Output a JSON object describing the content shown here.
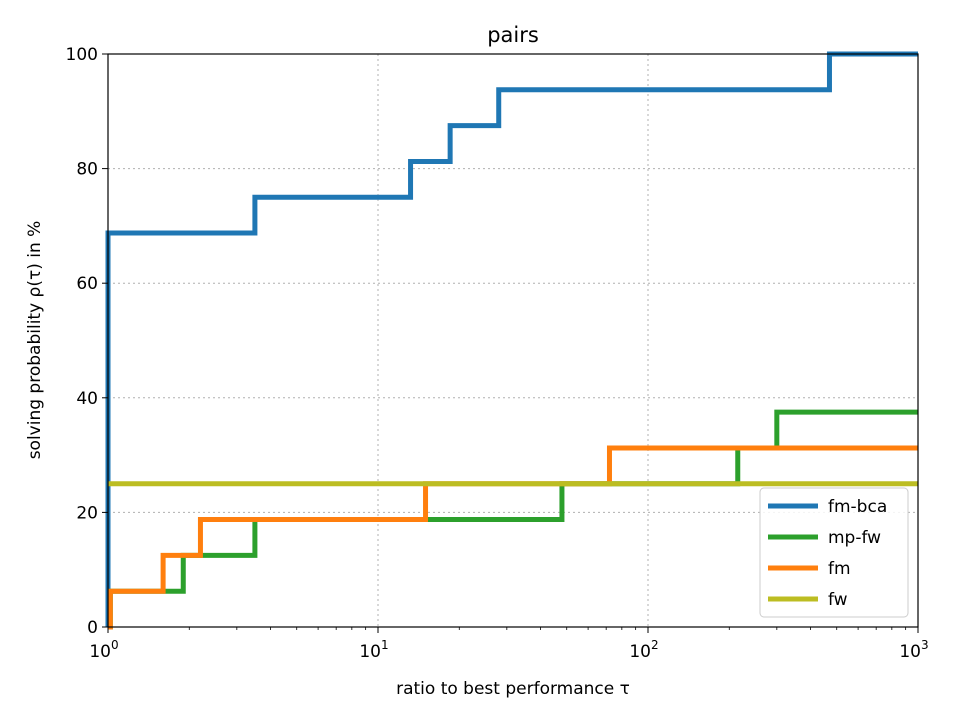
{
  "chart_data": {
    "type": "line",
    "title": "pairs",
    "xlabel": "ratio to best performance τ",
    "ylabel": "solving probability ρ(τ) in %",
    "xscale": "log",
    "xlim": [
      1,
      1000
    ],
    "ylim": [
      0,
      100
    ],
    "grid": true,
    "legend_position": "lower-right",
    "x_ticks": [
      {
        "value": 1,
        "base": "10",
        "exp": "0"
      },
      {
        "value": 10,
        "base": "10",
        "exp": "1"
      },
      {
        "value": 100,
        "base": "10",
        "exp": "2"
      },
      {
        "value": 1000,
        "base": "10",
        "exp": "3"
      }
    ],
    "y_ticks": [
      0,
      20,
      40,
      60,
      80,
      100
    ],
    "series": [
      {
        "name": "fm-bca",
        "color": "#1f77b4",
        "step": "post",
        "points": [
          [
            1,
            0
          ],
          [
            1,
            68.75
          ],
          [
            3.5,
            75
          ],
          [
            13.2,
            81.25
          ],
          [
            18.5,
            87.5
          ],
          [
            28,
            93.75
          ],
          [
            470,
            100
          ],
          [
            1000,
            100
          ]
        ]
      },
      {
        "name": "mp-fw",
        "color": "#2ca02c",
        "step": "post",
        "points": [
          [
            1,
            0
          ],
          [
            1.02,
            6.25
          ],
          [
            1.9,
            12.5
          ],
          [
            3.5,
            18.75
          ],
          [
            48,
            25
          ],
          [
            215,
            31.25
          ],
          [
            300,
            37.5
          ],
          [
            1000,
            37.5
          ]
        ]
      },
      {
        "name": "fm",
        "color": "#ff7f0e",
        "step": "post",
        "points": [
          [
            1,
            0
          ],
          [
            1.02,
            6.25
          ],
          [
            1.6,
            12.5
          ],
          [
            2.2,
            18.75
          ],
          [
            15,
            25
          ],
          [
            72,
            31.25
          ],
          [
            1000,
            31.25
          ]
        ]
      },
      {
        "name": "fw",
        "color": "#bcbd22",
        "step": "post",
        "points": [
          [
            1,
            25
          ],
          [
            1000,
            25
          ]
        ]
      }
    ],
    "legend_order": [
      "fm-bca",
      "mp-fw",
      "fm",
      "fw"
    ]
  }
}
